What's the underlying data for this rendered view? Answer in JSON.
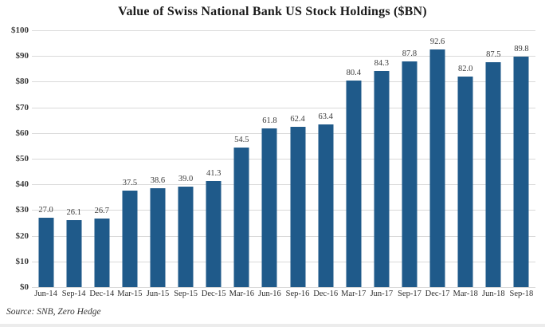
{
  "title": "Value of Swiss National Bank US Stock Holdings ($BN)",
  "source": "Source: SNB, Zero Hedge",
  "colors": {
    "bar": "#1f5a8a",
    "gridline": "#d9d9d9",
    "value_label": "#3b3b3b",
    "tick_label": "#3d3d3d"
  },
  "chart_data": {
    "type": "bar",
    "title": "Value of Swiss National Bank US Stock Holdings ($BN)",
    "categories": [
      "Jun-14",
      "Sep-14",
      "Dec-14",
      "Mar-15",
      "Jun-15",
      "Sep-15",
      "Dec-15",
      "Mar-16",
      "Jun-16",
      "Sep-16",
      "Dec-16",
      "Mar-17",
      "Jun-17",
      "Sep-17",
      "Dec-17",
      "Mar-18",
      "Jun-18",
      "Sep-18"
    ],
    "values": [
      27.0,
      26.1,
      26.7,
      37.5,
      38.6,
      39.0,
      41.3,
      54.5,
      61.8,
      62.4,
      63.4,
      80.4,
      84.3,
      87.8,
      92.6,
      82.0,
      87.5,
      89.8
    ],
    "value_labels": [
      "27.0",
      "26.1",
      "26.7",
      "37.5",
      "38.6",
      "39.0",
      "41.3",
      "54.5",
      "61.8",
      "62.4",
      "63.4",
      "80.4",
      "84.3",
      "87.8",
      "92.6",
      "82.0",
      "87.5",
      "89.8"
    ],
    "xlabel": "",
    "ylabel": "",
    "ylim": [
      0,
      100
    ],
    "yticks": [
      0,
      10,
      20,
      30,
      40,
      50,
      60,
      70,
      80,
      90,
      100
    ],
    "ytick_labels": [
      "$0",
      "$10",
      "$20",
      "$30",
      "$40",
      "$50",
      "$60",
      "$70",
      "$80",
      "$90",
      "$100"
    ],
    "grid": true,
    "legend": false,
    "source": "Source: SNB, Zero Hedge"
  }
}
